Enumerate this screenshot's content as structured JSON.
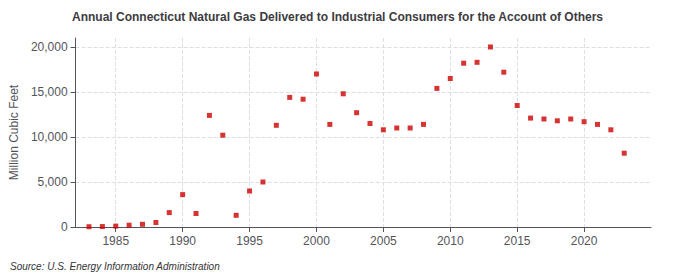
{
  "chart_data": {
    "type": "scatter",
    "title": "Annual Connecticut Natural Gas Delivered to Industrial Consumers for the Account of Others",
    "ylabel": "Million Cubic Feet",
    "source": "Source: U.S. Energy Information Administration",
    "x": [
      1983,
      1984,
      1985,
      1986,
      1987,
      1988,
      1989,
      1990,
      1991,
      1992,
      1993,
      1994,
      1995,
      1996,
      1997,
      1998,
      1999,
      2000,
      2001,
      2002,
      2003,
      2004,
      2005,
      2006,
      2007,
      2008,
      2009,
      2010,
      2011,
      2012,
      2013,
      2014,
      2015,
      2016,
      2017,
      2018,
      2019,
      2020,
      2021,
      2022,
      2023
    ],
    "values": [
      30,
      50,
      100,
      200,
      300,
      500,
      1600,
      3600,
      1500,
      12400,
      10200,
      1300,
      4000,
      5000,
      11300,
      14400,
      14200,
      17000,
      11400,
      14800,
      12700,
      11500,
      10800,
      11000,
      11000,
      11400,
      15400,
      16500,
      18200,
      18300,
      20000,
      17200,
      13500,
      12100,
      12000,
      11800,
      12000,
      11700,
      11400,
      10800,
      8200
    ],
    "color": "#cc0000",
    "marker": "square",
    "xlim": [
      1982,
      2025
    ],
    "xticks": [
      1985,
      1990,
      1995,
      2000,
      2005,
      2010,
      2015,
      2020
    ],
    "ylim": [
      0,
      21000
    ],
    "yticks": [
      0,
      {
        "value": 5000,
        "label": "5,000"
      },
      {
        "value": 10000,
        "label": "10,000"
      },
      {
        "value": 15000,
        "label": "15,000"
      },
      {
        "value": 20000,
        "label": "20,000"
      }
    ],
    "grid": true
  }
}
